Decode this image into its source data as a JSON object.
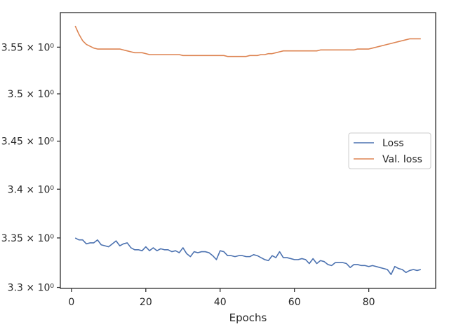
{
  "chart_data": {
    "type": "line",
    "title": "",
    "xlabel": "Epochs",
    "ylabel": "",
    "xlim": [
      -3,
      98
    ],
    "ylim": [
      3.299,
      3.5875
    ],
    "yscale": "log",
    "x_ticks": [
      0,
      20,
      40,
      60,
      80
    ],
    "y_ticks": [
      {
        "value": 3.3,
        "label": "3.3 × 10⁰"
      },
      {
        "value": 3.35,
        "label": "3.35 × 10⁰"
      },
      {
        "value": 3.4,
        "label": "3.4 × 10⁰"
      },
      {
        "value": 3.45,
        "label": "3.45 × 10⁰"
      },
      {
        "value": 3.5,
        "label": "3.5 × 10⁰"
      },
      {
        "value": 3.55,
        "label": "3.55 × 10⁰"
      }
    ],
    "grid": false,
    "legend_position": "center-right",
    "series": [
      {
        "name": "Loss",
        "color": "#4c72b0",
        "x": [
          1,
          2,
          3,
          4,
          5,
          6,
          7,
          8,
          9,
          10,
          11,
          12,
          13,
          14,
          15,
          16,
          17,
          18,
          19,
          20,
          21,
          22,
          23,
          24,
          25,
          26,
          27,
          28,
          29,
          30,
          31,
          32,
          33,
          34,
          35,
          36,
          37,
          38,
          39,
          40,
          41,
          42,
          43,
          44,
          45,
          46,
          47,
          48,
          49,
          50,
          51,
          52,
          53,
          54,
          55,
          56,
          57,
          58,
          59,
          60,
          61,
          62,
          63,
          64,
          65,
          66,
          67,
          68,
          69,
          70,
          71,
          72,
          73,
          74,
          75,
          76,
          77,
          78,
          79,
          80,
          81,
          82,
          83,
          84,
          85,
          86,
          87,
          88,
          89,
          90,
          91,
          92,
          93,
          94
        ],
        "values": [
          3.35,
          3.348,
          3.348,
          3.344,
          3.345,
          3.345,
          3.348,
          3.343,
          3.342,
          3.341,
          3.344,
          3.347,
          3.342,
          3.344,
          3.345,
          3.34,
          3.338,
          3.338,
          3.337,
          3.341,
          3.337,
          3.34,
          3.337,
          3.339,
          3.338,
          3.338,
          3.336,
          3.337,
          3.335,
          3.34,
          3.334,
          3.331,
          3.336,
          3.335,
          3.336,
          3.336,
          3.335,
          3.332,
          3.328,
          3.337,
          3.336,
          3.332,
          3.332,
          3.331,
          3.332,
          3.332,
          3.331,
          3.331,
          3.333,
          3.332,
          3.33,
          3.328,
          3.327,
          3.332,
          3.33,
          3.336,
          3.33,
          3.33,
          3.329,
          3.328,
          3.328,
          3.329,
          3.328,
          3.324,
          3.329,
          3.324,
          3.327,
          3.326,
          3.323,
          3.322,
          3.325,
          3.325,
          3.325,
          3.324,
          3.32,
          3.323,
          3.323,
          3.322,
          3.322,
          3.321,
          3.322,
          3.321,
          3.32,
          3.319,
          3.318,
          3.313,
          3.321,
          3.319,
          3.318,
          3.315,
          3.317,
          3.318,
          3.317,
          3.318
        ]
      },
      {
        "name": "Val. loss",
        "color": "#dd8452",
        "x": [
          1,
          2,
          3,
          4,
          5,
          6,
          7,
          8,
          9,
          10,
          11,
          12,
          13,
          14,
          15,
          16,
          17,
          18,
          19,
          20,
          21,
          22,
          23,
          24,
          25,
          26,
          27,
          28,
          29,
          30,
          31,
          32,
          33,
          34,
          35,
          36,
          37,
          38,
          39,
          40,
          41,
          42,
          43,
          44,
          45,
          46,
          47,
          48,
          49,
          50,
          51,
          52,
          53,
          54,
          55,
          56,
          57,
          58,
          59,
          60,
          61,
          62,
          63,
          64,
          65,
          66,
          67,
          68,
          69,
          70,
          71,
          72,
          73,
          74,
          75,
          76,
          77,
          78,
          79,
          80,
          81,
          82,
          83,
          84,
          85,
          86,
          87,
          88,
          89,
          90,
          91,
          92,
          93,
          94
        ],
        "values": [
          3.573,
          3.564,
          3.557,
          3.553,
          3.551,
          3.549,
          3.548,
          3.548,
          3.548,
          3.548,
          3.548,
          3.548,
          3.548,
          3.547,
          3.546,
          3.545,
          3.544,
          3.544,
          3.544,
          3.543,
          3.542,
          3.542,
          3.542,
          3.542,
          3.542,
          3.542,
          3.542,
          3.542,
          3.542,
          3.541,
          3.541,
          3.541,
          3.541,
          3.541,
          3.541,
          3.541,
          3.541,
          3.541,
          3.541,
          3.541,
          3.541,
          3.54,
          3.54,
          3.54,
          3.54,
          3.54,
          3.54,
          3.541,
          3.541,
          3.541,
          3.542,
          3.542,
          3.543,
          3.543,
          3.544,
          3.545,
          3.546,
          3.546,
          3.546,
          3.546,
          3.546,
          3.546,
          3.546,
          3.546,
          3.546,
          3.546,
          3.547,
          3.547,
          3.547,
          3.547,
          3.547,
          3.547,
          3.547,
          3.547,
          3.547,
          3.547,
          3.548,
          3.548,
          3.548,
          3.548,
          3.549,
          3.55,
          3.551,
          3.552,
          3.553,
          3.554,
          3.555,
          3.556,
          3.557,
          3.558,
          3.559,
          3.559,
          3.559,
          3.559
        ]
      }
    ]
  }
}
